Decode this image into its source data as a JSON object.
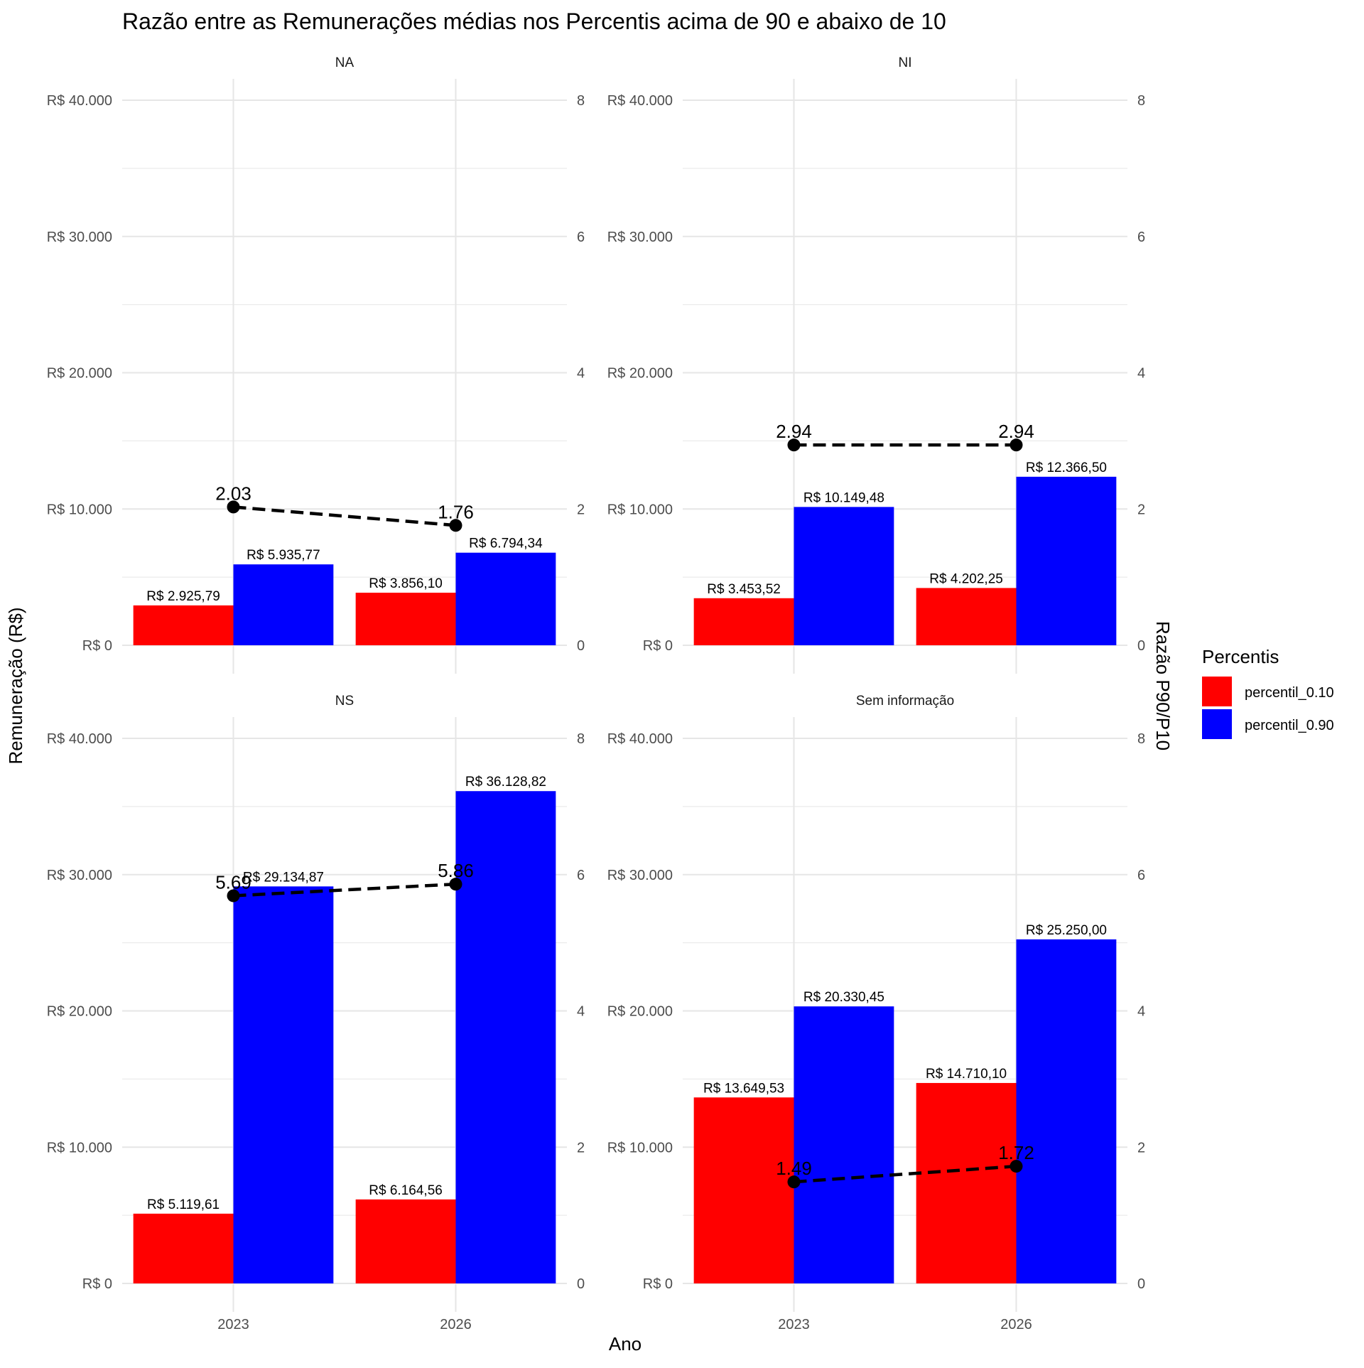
{
  "chart_data": {
    "type": "bar",
    "title": "Razão entre as Remunerações médias nos Percentis acima de 90 e abaixo de 10",
    "xlabel": "Ano",
    "ylabel": "Remuneração (R$)",
    "y2label": "Razão P90/P10",
    "categories": [
      "2023",
      "2026"
    ],
    "ylim": [
      0,
      40000
    ],
    "y_ticks": [
      "R$ 0",
      "R$ 10.000",
      "R$ 20.000",
      "R$ 30.000",
      "R$ 40.000"
    ],
    "y2lim": [
      0,
      8
    ],
    "y2_ticks": [
      "0",
      "2",
      "4",
      "6",
      "8"
    ],
    "grid": true,
    "legend": {
      "title": "Percentis",
      "position": "right",
      "entries": [
        {
          "name": "percentil_0.10",
          "color": "#ff0000"
        },
        {
          "name": "percentil_0.90",
          "color": "#0000ff"
        }
      ]
    },
    "ratio_line": {
      "color": "#000000",
      "style": "dashed"
    },
    "panels": [
      {
        "name": "NA",
        "series": [
          {
            "name": "percentil_0.10",
            "values": [
              2925.79,
              3856.1
            ],
            "labels": [
              "R$ 2.925,79",
              "R$ 3.856,10"
            ]
          },
          {
            "name": "percentil_0.90",
            "values": [
              5935.77,
              6794.34
            ],
            "labels": [
              "R$ 5.935,77",
              "R$ 6.794,34"
            ]
          }
        ],
        "ratio": [
          2.03,
          1.76
        ],
        "ratio_labels": [
          "2.03",
          "1.76"
        ]
      },
      {
        "name": "NI",
        "series": [
          {
            "name": "percentil_0.10",
            "values": [
              3453.52,
              4202.25
            ],
            "labels": [
              "R$ 3.453,52",
              "R$ 4.202,25"
            ]
          },
          {
            "name": "percentil_0.90",
            "values": [
              10149.48,
              12366.5
            ],
            "labels": [
              "R$ 10.149,48",
              "R$ 12.366,50"
            ]
          }
        ],
        "ratio": [
          2.94,
          2.94
        ],
        "ratio_labels": [
          "2.94",
          "2.94"
        ]
      },
      {
        "name": "NS",
        "series": [
          {
            "name": "percentil_0.10",
            "values": [
              5119.61,
              6164.56
            ],
            "labels": [
              "R$ 5.119,61",
              "R$ 6.164,56"
            ]
          },
          {
            "name": "percentil_0.90",
            "values": [
              29134.87,
              36128.82
            ],
            "labels": [
              "R$ 29.134,87",
              "R$ 36.128,82"
            ]
          }
        ],
        "ratio": [
          5.69,
          5.86
        ],
        "ratio_labels": [
          "5.69",
          "5.86"
        ]
      },
      {
        "name": "Sem informação",
        "series": [
          {
            "name": "percentil_0.10",
            "values": [
              13649.53,
              14710.1
            ],
            "labels": [
              "R$ 13.649,53",
              "R$ 14.710,10"
            ]
          },
          {
            "name": "percentil_0.90",
            "values": [
              20330.45,
              25250.0
            ],
            "labels": [
              "R$ 20.330,45",
              "R$ 25.250,00"
            ]
          }
        ],
        "ratio": [
          1.49,
          1.72
        ],
        "ratio_labels": [
          "1.49",
          "1.72"
        ]
      }
    ]
  }
}
